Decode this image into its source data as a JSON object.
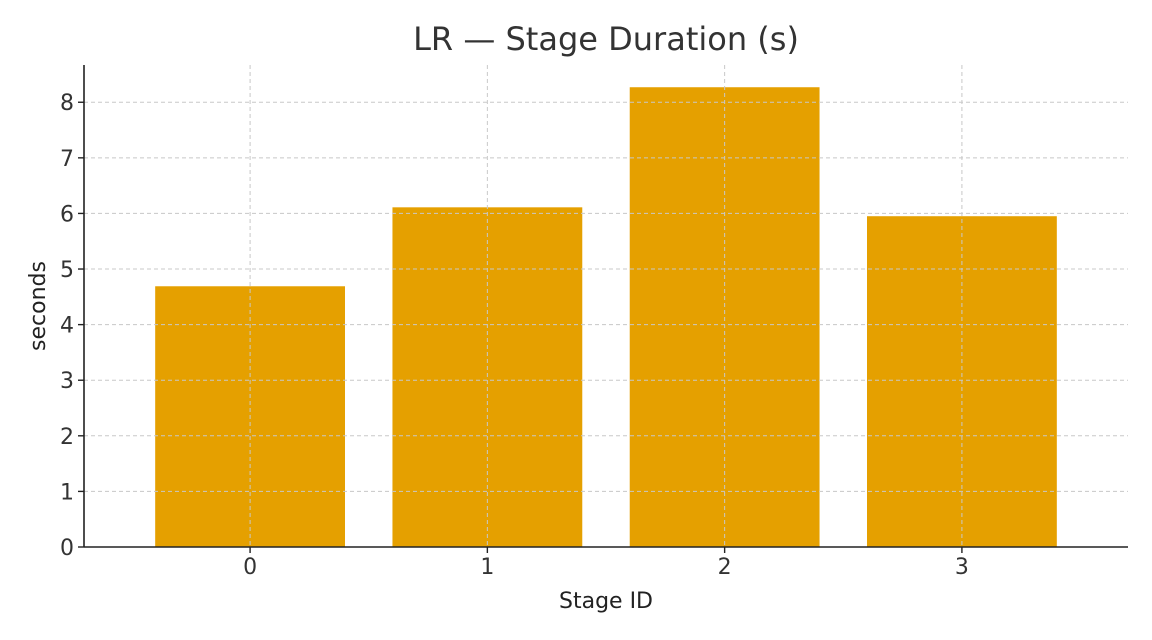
{
  "chart_data": {
    "type": "bar",
    "title": "LR — Stage Duration (s)",
    "xlabel": "Stage ID",
    "ylabel": "seconds",
    "categories": [
      "0",
      "1",
      "2",
      "3"
    ],
    "values": [
      4.69,
      6.11,
      8.27,
      5.95
    ],
    "ylim": [
      0,
      8.67
    ],
    "yticks": [
      0,
      1,
      2,
      3,
      4,
      5,
      6,
      7,
      8
    ],
    "bar_color": "#e5a000",
    "grid": true
  }
}
